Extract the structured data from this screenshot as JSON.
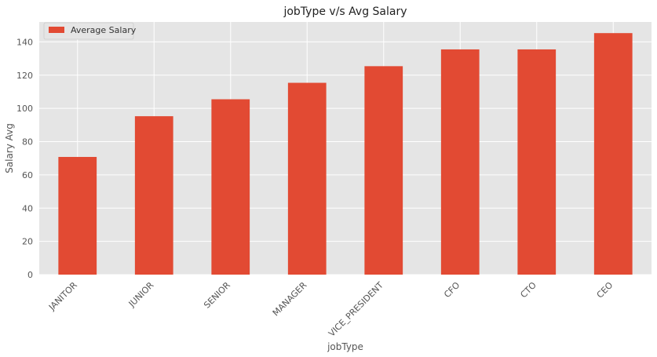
{
  "chart_data": {
    "type": "bar",
    "title": "jobType v/s Avg Salary",
    "xlabel": "jobType",
    "ylabel": "Salary Avg",
    "categories": [
      "JANITOR",
      "JUNIOR",
      "SENIOR",
      "MANAGER",
      "VICE_PRESIDENT",
      "CFO",
      "CTO",
      "CEO"
    ],
    "series": [
      {
        "name": "Average Salary",
        "values": [
          70.8,
          95.3,
          105.5,
          115.4,
          125.4,
          135.5,
          135.5,
          145.3
        ]
      }
    ],
    "ylim": [
      0,
      152
    ],
    "yticks": [
      0,
      20,
      40,
      60,
      80,
      100,
      120,
      140
    ],
    "grid": true,
    "legend_position": "top-left",
    "colors": {
      "bar": "#E24A33",
      "plot_background": "#E5E5E5",
      "grid": "#FFFFFF"
    }
  }
}
